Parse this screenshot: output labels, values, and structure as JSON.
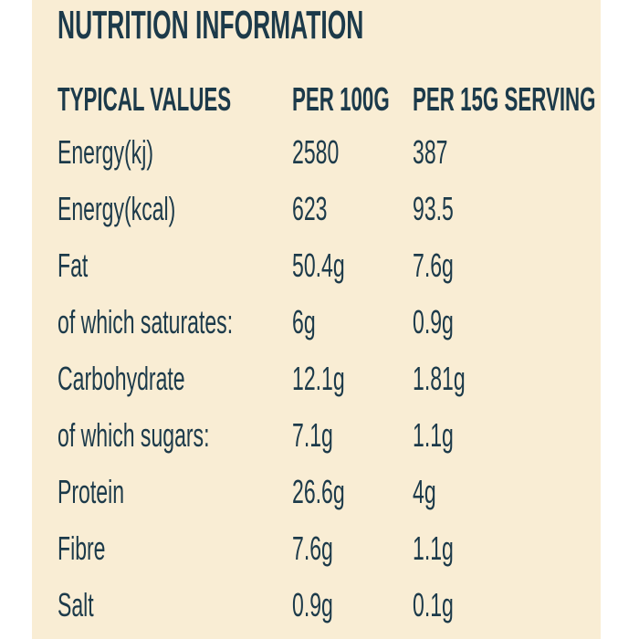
{
  "colors": {
    "page_background": "#ffffff",
    "panel_background": "#f9edd4",
    "text": "#1c3a4a"
  },
  "title": "NUTRITION INFORMATION",
  "table": {
    "headers": [
      "TYPICAL VALUES",
      "PER 100G",
      "PER 15G SERVING"
    ],
    "rows": [
      {
        "label": "Energy(kj)",
        "per_100g": "2580",
        "per_15g": "387"
      },
      {
        "label": "Energy(kcal)",
        "per_100g": "623",
        "per_15g": "93.5"
      },
      {
        "label": "Fat",
        "per_100g": "50.4g",
        "per_15g": "7.6g"
      },
      {
        "label": "of which saturates:",
        "per_100g": "6g",
        "per_15g": "0.9g"
      },
      {
        "label": "Carbohydrate",
        "per_100g": "12.1g",
        "per_15g": "1.81g"
      },
      {
        "label": "of which sugars:",
        "per_100g": "7.1g",
        "per_15g": "1.1g"
      },
      {
        "label": "Protein",
        "per_100g": "26.6g",
        "per_15g": "4g"
      },
      {
        "label": "Fibre",
        "per_100g": "7.6g",
        "per_15g": "1.1g"
      },
      {
        "label": "Salt",
        "per_100g": "0.9g",
        "per_15g": "0.1g"
      }
    ]
  }
}
